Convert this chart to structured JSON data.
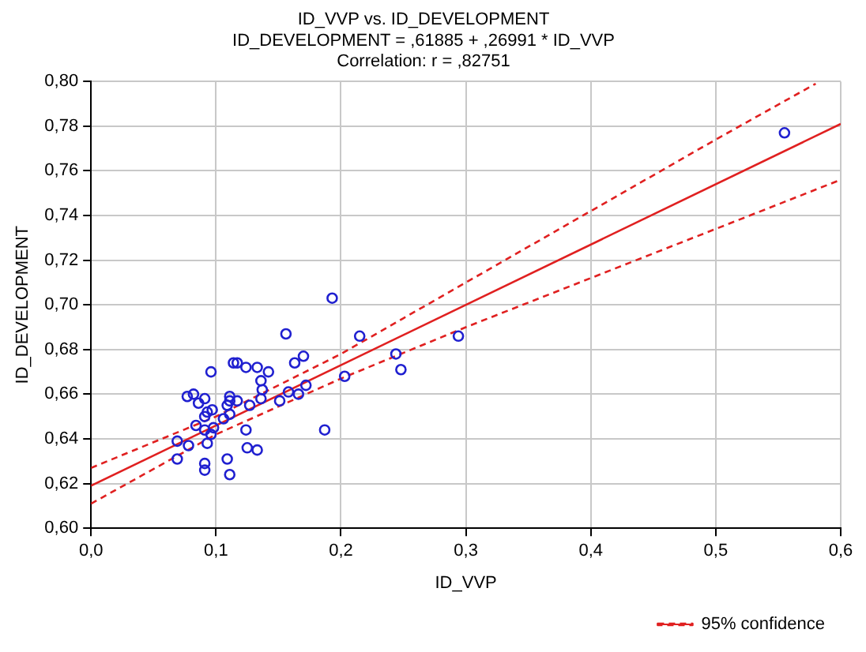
{
  "chart_data": {
    "type": "scatter",
    "title": "ID_VVP vs. ID_DEVELOPMENT",
    "subtitle": "ID_DEVELOPMENT = ,61885 + ,26991 * ID_VVP",
    "annotations": [
      "Correlation: r = ,82751"
    ],
    "xlabel": "ID_VVP",
    "ylabel": "ID_DEVELOPMENT",
    "xlim": [
      0,
      0.6
    ],
    "ylim": [
      0.6,
      0.8
    ],
    "xticks": [
      {
        "value": 0,
        "label": "0,0"
      },
      {
        "value": 0.1,
        "label": "0,1"
      },
      {
        "value": 0.2,
        "label": "0,2"
      },
      {
        "value": 0.3,
        "label": "0,3"
      },
      {
        "value": 0.4,
        "label": "0,4"
      },
      {
        "value": 0.5,
        "label": "0,5"
      },
      {
        "value": 0.6,
        "label": "0,6"
      }
    ],
    "yticks": [
      {
        "value": 0.6,
        "label": "0,60"
      },
      {
        "value": 0.62,
        "label": "0,62"
      },
      {
        "value": 0.64,
        "label": "0,64"
      },
      {
        "value": 0.66,
        "label": "0,66"
      },
      {
        "value": 0.68,
        "label": "0,68"
      },
      {
        "value": 0.7,
        "label": "0,70"
      },
      {
        "value": 0.72,
        "label": "0,72"
      },
      {
        "value": 0.74,
        "label": "0,74"
      },
      {
        "value": 0.76,
        "label": "0,76"
      },
      {
        "value": 0.78,
        "label": "0,78"
      },
      {
        "value": 0.8,
        "label": "0,80"
      }
    ],
    "grid": true,
    "legend": "bottom right",
    "series": [
      {
        "type": "scatter",
        "color": "#2020d0",
        "marker": "circle",
        "x": [
          0.156,
          0.193,
          0.215,
          0.294,
          0.244,
          0.248,
          0.203,
          0.17,
          0.163,
          0.142,
          0.133,
          0.124,
          0.117,
          0.114,
          0.096,
          0.136,
          0.172,
          0.166,
          0.158,
          0.151,
          0.137,
          0.136,
          0.127,
          0.117,
          0.111,
          0.111,
          0.109,
          0.111,
          0.106,
          0.077,
          0.082,
          0.091,
          0.086,
          0.097,
          0.093,
          0.091,
          0.084,
          0.098,
          0.091,
          0.096,
          0.093,
          0.069,
          0.078,
          0.124,
          0.125,
          0.133,
          0.187,
          0.069,
          0.091,
          0.091,
          0.109,
          0.111,
          0.555
        ],
        "values": [
          0.687,
          0.703,
          0.686,
          0.686,
          0.678,
          0.671,
          0.668,
          0.677,
          0.674,
          0.67,
          0.672,
          0.672,
          0.674,
          0.674,
          0.67,
          0.666,
          0.664,
          0.66,
          0.661,
          0.657,
          0.662,
          0.658,
          0.655,
          0.657,
          0.659,
          0.657,
          0.655,
          0.651,
          0.649,
          0.659,
          0.66,
          0.658,
          0.656,
          0.653,
          0.652,
          0.65,
          0.646,
          0.645,
          0.644,
          0.642,
          0.638,
          0.639,
          0.637,
          0.644,
          0.636,
          0.635,
          0.644,
          0.631,
          0.629,
          0.626,
          0.631,
          0.624,
          0.777
        ]
      },
      {
        "type": "line",
        "color": "#e02020",
        "marker": "none",
        "line_style": "solid",
        "x": [
          0,
          0.6
        ],
        "values": [
          0.619,
          0.781
        ]
      },
      {
        "type": "line",
        "name": "95% confidence",
        "color": "#e02020",
        "marker": "none",
        "line_style": "dashed",
        "x": [
          0,
          0.1,
          0.2,
          0.3,
          0.4,
          0.5,
          0.58
        ],
        "values": [
          0.627,
          0.65,
          0.678,
          0.71,
          0.742,
          0.774,
          0.799
        ]
      },
      {
        "type": "line",
        "color": "#e02020",
        "marker": "none",
        "line_style": "dashed",
        "x": [
          0,
          0.1,
          0.2,
          0.3,
          0.4,
          0.5,
          0.6
        ],
        "values": [
          0.611,
          0.642,
          0.667,
          0.69,
          0.712,
          0.734,
          0.756
        ]
      }
    ]
  }
}
